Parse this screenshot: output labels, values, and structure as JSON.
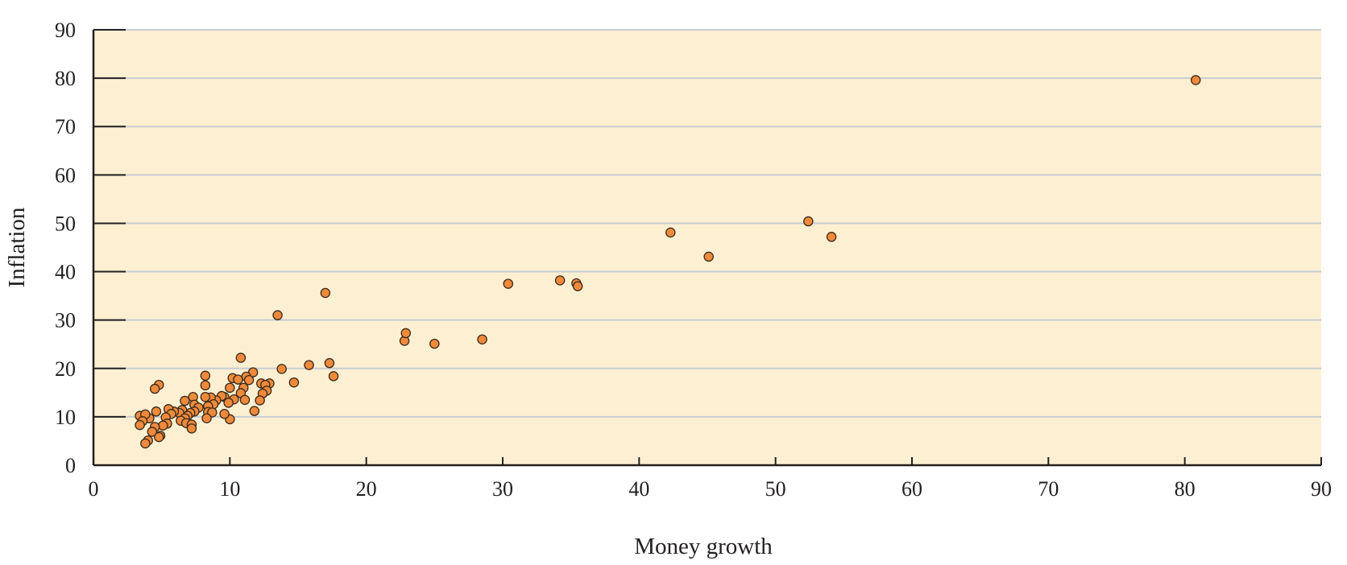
{
  "chart_data": {
    "type": "scatter",
    "title": "",
    "xlabel": "Money growth",
    "ylabel": "Inflation",
    "xlim": [
      0,
      90
    ],
    "ylim": [
      0,
      90
    ],
    "x_ticks": [
      0,
      10,
      20,
      30,
      40,
      50,
      60,
      70,
      80,
      90
    ],
    "y_ticks": [
      0,
      10,
      20,
      30,
      40,
      50,
      60,
      70,
      80,
      90
    ],
    "grid": "horizontal",
    "legend": "none",
    "colors": {
      "plot_background": "#fdf0d2",
      "point_fill": "#ef8a3c",
      "point_stroke": "#3a2a1a",
      "gridline": "#c9ccd3",
      "axis": "#231f20"
    },
    "series": [
      {
        "points": [
          [
            80.8,
            79.6
          ],
          [
            52.4,
            50.4
          ],
          [
            54.1,
            47.2
          ],
          [
            42.3,
            48.1
          ],
          [
            45.1,
            43.1
          ],
          [
            30.4,
            37.5
          ],
          [
            34.2,
            38.2
          ],
          [
            35.4,
            37.6
          ],
          [
            35.5,
            37.0
          ],
          [
            22.8,
            25.7
          ],
          [
            22.9,
            27.3
          ],
          [
            25.0,
            25.1
          ],
          [
            28.5,
            26.0
          ],
          [
            17.0,
            35.6
          ],
          [
            13.5,
            31.0
          ],
          [
            17.3,
            21.1
          ],
          [
            17.6,
            18.4
          ],
          [
            15.8,
            20.7
          ],
          [
            14.7,
            17.1
          ],
          [
            13.8,
            19.9
          ],
          [
            10.8,
            22.2
          ],
          [
            11.7,
            19.2
          ],
          [
            11.2,
            18.3
          ],
          [
            11.4,
            17.6
          ],
          [
            10.2,
            18.0
          ],
          [
            10.6,
            17.7
          ],
          [
            12.3,
            16.9
          ],
          [
            12.9,
            16.9
          ],
          [
            12.6,
            16.6
          ],
          [
            12.7,
            15.4
          ],
          [
            11.0,
            16.0
          ],
          [
            10.0,
            16.0
          ],
          [
            12.4,
            14.8
          ],
          [
            12.2,
            13.4
          ],
          [
            10.8,
            14.9
          ],
          [
            11.1,
            13.5
          ],
          [
            10.3,
            13.6
          ],
          [
            9.6,
            14.1
          ],
          [
            9.4,
            14.3
          ],
          [
            9.9,
            12.9
          ],
          [
            9.0,
            13.4
          ],
          [
            8.6,
            14.0
          ],
          [
            8.8,
            12.6
          ],
          [
            8.4,
            12.2
          ],
          [
            8.2,
            18.5
          ],
          [
            8.2,
            16.5
          ],
          [
            8.2,
            14.1
          ],
          [
            8.4,
            11.0
          ],
          [
            8.7,
            10.9
          ],
          [
            8.3,
            9.7
          ],
          [
            10.0,
            9.5
          ],
          [
            9.6,
            10.6
          ],
          [
            11.8,
            11.2
          ],
          [
            7.3,
            14.1
          ],
          [
            7.4,
            12.5
          ],
          [
            7.7,
            11.9
          ],
          [
            7.4,
            11.1
          ],
          [
            7.1,
            10.8
          ],
          [
            6.7,
            13.3
          ],
          [
            6.5,
            11.4
          ],
          [
            6.3,
            10.8
          ],
          [
            6.9,
            10.2
          ],
          [
            6.7,
            9.7
          ],
          [
            6.4,
            9.2
          ],
          [
            6.8,
            8.7
          ],
          [
            7.2,
            8.4
          ],
          [
            7.2,
            7.6
          ],
          [
            5.9,
            11.1
          ],
          [
            5.5,
            11.6
          ],
          [
            5.7,
            10.6
          ],
          [
            5.3,
            9.9
          ],
          [
            5.4,
            8.6
          ],
          [
            5.1,
            8.2
          ],
          [
            4.8,
            16.6
          ],
          [
            4.5,
            15.8
          ],
          [
            4.6,
            11.1
          ],
          [
            4.5,
            7.9
          ],
          [
            4.3,
            6.9
          ],
          [
            4.9,
            6.1
          ],
          [
            4.8,
            5.8
          ],
          [
            4.1,
            9.7
          ],
          [
            3.4,
            10.2
          ],
          [
            3.8,
            10.5
          ],
          [
            3.6,
            9.1
          ],
          [
            3.4,
            8.3
          ],
          [
            4.0,
            5.1
          ],
          [
            3.8,
            4.5
          ]
        ]
      }
    ]
  }
}
